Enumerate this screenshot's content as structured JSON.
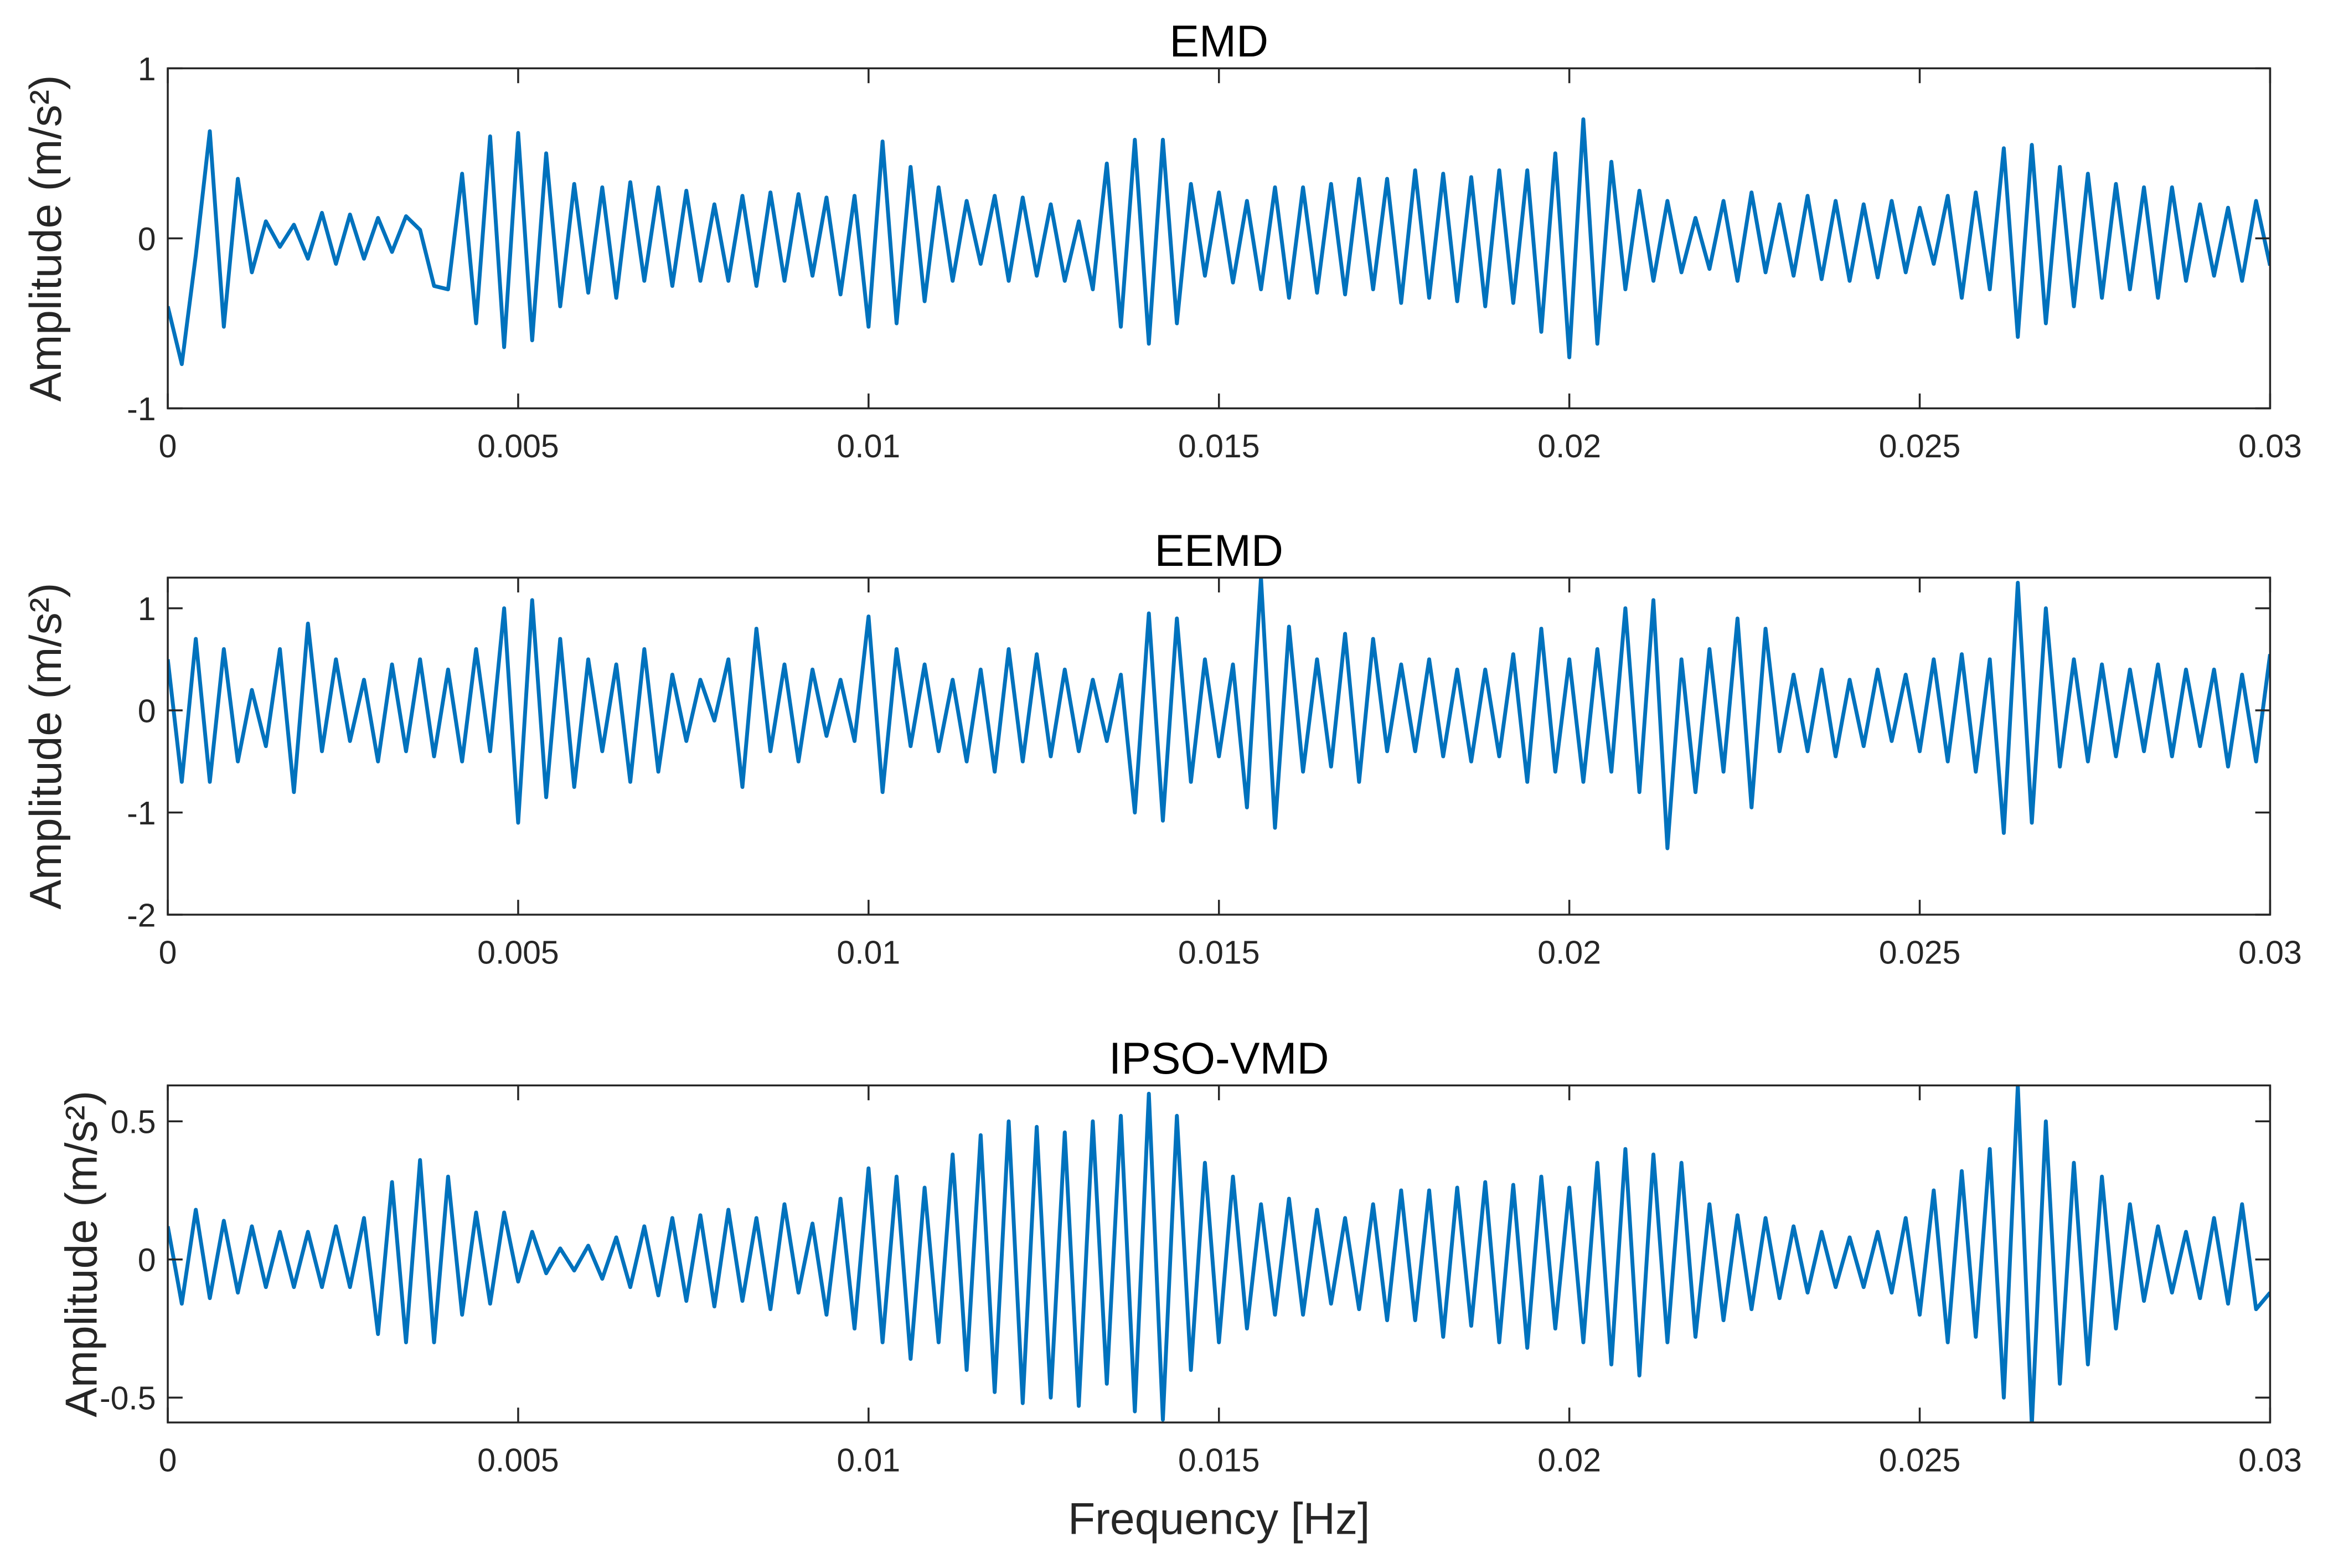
{
  "chart_data": [
    {
      "type": "line",
      "title": "EMD",
      "xlabel": "",
      "ylabel": "Amplitude (m/s²)",
      "xlim": [
        0,
        0.03
      ],
      "ylim": [
        -1,
        1
      ],
      "yticks": [
        -1,
        0,
        1
      ],
      "ytick_labels": [
        "-1",
        "0",
        "1"
      ],
      "xticks": [
        0,
        0.005,
        0.01,
        0.015,
        0.02,
        0.025,
        0.03
      ],
      "xtick_labels": [
        "0",
        "0.005",
        "0.01",
        "0.015",
        "0.02",
        "0.025",
        "0.03"
      ],
      "grid": false,
      "x_step": 0.0002,
      "color": "#0072BD",
      "values": [
        -0.4,
        -0.74,
        -0.1,
        0.63,
        -0.52,
        0.35,
        -0.2,
        0.1,
        -0.05,
        0.08,
        -0.12,
        0.15,
        -0.15,
        0.14,
        -0.12,
        0.12,
        -0.08,
        0.13,
        0.05,
        -0.28,
        -0.3,
        0.38,
        -0.5,
        0.6,
        -0.64,
        0.62,
        -0.6,
        0.5,
        -0.4,
        0.32,
        -0.32,
        0.3,
        -0.35,
        0.33,
        -0.25,
        0.3,
        -0.28,
        0.28,
        -0.25,
        0.2,
        -0.25,
        0.25,
        -0.28,
        0.27,
        -0.25,
        0.26,
        -0.22,
        0.24,
        -0.33,
        0.25,
        -0.52,
        0.57,
        -0.5,
        0.42,
        -0.37,
        0.3,
        -0.25,
        0.22,
        -0.15,
        0.25,
        -0.25,
        0.24,
        -0.22,
        0.2,
        -0.25,
        0.1,
        -0.3,
        0.44,
        -0.52,
        0.58,
        -0.62,
        0.58,
        -0.5,
        0.32,
        -0.22,
        0.27,
        -0.26,
        0.22,
        -0.3,
        0.3,
        -0.35,
        0.3,
        -0.32,
        0.32,
        -0.33,
        0.35,
        -0.3,
        0.35,
        -0.38,
        0.4,
        -0.35,
        0.38,
        -0.37,
        0.36,
        -0.4,
        0.4,
        -0.38,
        0.4,
        -0.55,
        0.5,
        -0.7,
        0.7,
        -0.62,
        0.45,
        -0.3,
        0.28,
        -0.25,
        0.22,
        -0.2,
        0.12,
        -0.18,
        0.22,
        -0.25,
        0.27,
        -0.2,
        0.2,
        -0.22,
        0.25,
        -0.24,
        0.22,
        -0.25,
        0.2,
        -0.23,
        0.22,
        -0.2,
        0.18,
        -0.15,
        0.25,
        -0.35,
        0.27,
        -0.3,
        0.53,
        -0.58,
        0.55,
        -0.5,
        0.42,
        -0.4,
        0.38,
        -0.35,
        0.32,
        -0.3,
        0.3,
        -0.35,
        0.3,
        -0.25,
        0.2,
        -0.22,
        0.18,
        -0.25,
        0.22,
        -0.16
      ]
    },
    {
      "type": "line",
      "title": "EEMD",
      "xlabel": "",
      "ylabel": "Amplitude (m/s²)",
      "xlim": [
        0,
        0.03
      ],
      "ylim": [
        -2,
        1.3
      ],
      "yticks": [
        -2,
        -1,
        0,
        1
      ],
      "ytick_labels": [
        "-2",
        "-1",
        "0",
        "1"
      ],
      "xticks": [
        0,
        0.005,
        0.01,
        0.015,
        0.02,
        0.025,
        0.03
      ],
      "xtick_labels": [
        "0",
        "0.005",
        "0.01",
        "0.015",
        "0.02",
        "0.025",
        "0.03"
      ],
      "grid": false,
      "x_step": 0.0002,
      "color": "#0072BD",
      "values": [
        0.5,
        -0.7,
        0.7,
        -0.7,
        0.6,
        -0.5,
        0.2,
        -0.35,
        0.6,
        -0.8,
        0.85,
        -0.4,
        0.5,
        -0.3,
        0.3,
        -0.5,
        0.45,
        -0.4,
        0.5,
        -0.45,
        0.4,
        -0.5,
        0.6,
        -0.4,
        1.0,
        -1.1,
        1.08,
        -0.85,
        0.7,
        -0.75,
        0.5,
        -0.4,
        0.45,
        -0.7,
        0.6,
        -0.6,
        0.35,
        -0.3,
        0.3,
        -0.1,
        0.5,
        -0.75,
        0.8,
        -0.4,
        0.45,
        -0.5,
        0.4,
        -0.25,
        0.3,
        -0.3,
        0.92,
        -0.8,
        0.6,
        -0.35,
        0.45,
        -0.4,
        0.3,
        -0.5,
        0.4,
        -0.6,
        0.6,
        -0.5,
        0.55,
        -0.45,
        0.4,
        -0.4,
        0.3,
        -0.3,
        0.35,
        -1.0,
        0.95,
        -1.08,
        0.9,
        -0.7,
        0.5,
        -0.45,
        0.45,
        -0.95,
        1.3,
        -1.15,
        0.82,
        -0.6,
        0.5,
        -0.55,
        0.75,
        -0.7,
        0.7,
        -0.4,
        0.45,
        -0.4,
        0.5,
        -0.45,
        0.4,
        -0.5,
        0.4,
        -0.45,
        0.55,
        -0.7,
        0.8,
        -0.6,
        0.5,
        -0.7,
        0.6,
        -0.6,
        1.0,
        -0.8,
        1.08,
        -1.35,
        0.5,
        -0.8,
        0.6,
        -0.6,
        0.9,
        -0.95,
        0.8,
        -0.4,
        0.35,
        -0.4,
        0.4,
        -0.45,
        0.3,
        -0.35,
        0.4,
        -0.3,
        0.35,
        -0.4,
        0.5,
        -0.5,
        0.55,
        -0.6,
        0.5,
        -1.2,
        1.25,
        -1.1,
        1.0,
        -0.55,
        0.5,
        -0.5,
        0.45,
        -0.45,
        0.4,
        -0.4,
        0.45,
        -0.45,
        0.4,
        -0.35,
        0.4,
        -0.55,
        0.35,
        -0.5,
        0.55
      ]
    },
    {
      "type": "line",
      "title": "IPSO-VMD",
      "xlabel": "Frequency [Hz]",
      "ylabel": "Amplitude (m/s²)",
      "xlim": [
        0,
        0.03
      ],
      "ylim": [
        -0.59,
        0.63
      ],
      "yticks": [
        -0.5,
        0,
        0.5
      ],
      "ytick_labels": [
        "-0.5",
        "0",
        "0.5"
      ],
      "xticks": [
        0,
        0.005,
        0.01,
        0.015,
        0.02,
        0.025,
        0.03
      ],
      "xtick_labels": [
        "0",
        "0.005",
        "0.01",
        "0.015",
        "0.02",
        "0.025",
        "0.03"
      ],
      "grid": false,
      "x_step": 0.0002,
      "color": "#0072BD",
      "values": [
        0.12,
        -0.16,
        0.18,
        -0.14,
        0.14,
        -0.12,
        0.12,
        -0.1,
        0.1,
        -0.1,
        0.1,
        -0.1,
        0.12,
        -0.1,
        0.15,
        -0.27,
        0.28,
        -0.3,
        0.36,
        -0.3,
        0.3,
        -0.2,
        0.17,
        -0.16,
        0.17,
        -0.08,
        0.1,
        -0.05,
        0.04,
        -0.04,
        0.05,
        -0.07,
        0.08,
        -0.1,
        0.12,
        -0.13,
        0.15,
        -0.15,
        0.16,
        -0.17,
        0.18,
        -0.15,
        0.15,
        -0.18,
        0.2,
        -0.12,
        0.13,
        -0.2,
        0.22,
        -0.25,
        0.33,
        -0.3,
        0.3,
        -0.36,
        0.26,
        -0.3,
        0.38,
        -0.4,
        0.45,
        -0.48,
        0.5,
        -0.52,
        0.48,
        -0.5,
        0.46,
        -0.53,
        0.5,
        -0.45,
        0.52,
        -0.55,
        0.6,
        -0.58,
        0.52,
        -0.4,
        0.35,
        -0.3,
        0.3,
        -0.25,
        0.2,
        -0.2,
        0.22,
        -0.2,
        0.18,
        -0.16,
        0.15,
        -0.18,
        0.2,
        -0.22,
        0.25,
        -0.22,
        0.25,
        -0.28,
        0.26,
        -0.24,
        0.28,
        -0.3,
        0.27,
        -0.32,
        0.3,
        -0.25,
        0.26,
        -0.3,
        0.35,
        -0.38,
        0.4,
        -0.42,
        0.38,
        -0.3,
        0.35,
        -0.28,
        0.2,
        -0.22,
        0.16,
        -0.18,
        0.15,
        -0.14,
        0.12,
        -0.12,
        0.1,
        -0.1,
        0.08,
        -0.1,
        0.1,
        -0.12,
        0.15,
        -0.2,
        0.25,
        -0.3,
        0.32,
        -0.28,
        0.4,
        -0.5,
        0.63,
        -0.6,
        0.5,
        -0.45,
        0.35,
        -0.38,
        0.3,
        -0.25,
        0.2,
        -0.15,
        0.12,
        -0.12,
        0.1,
        -0.14,
        0.15,
        -0.16,
        0.2,
        -0.18,
        -0.12
      ]
    }
  ]
}
